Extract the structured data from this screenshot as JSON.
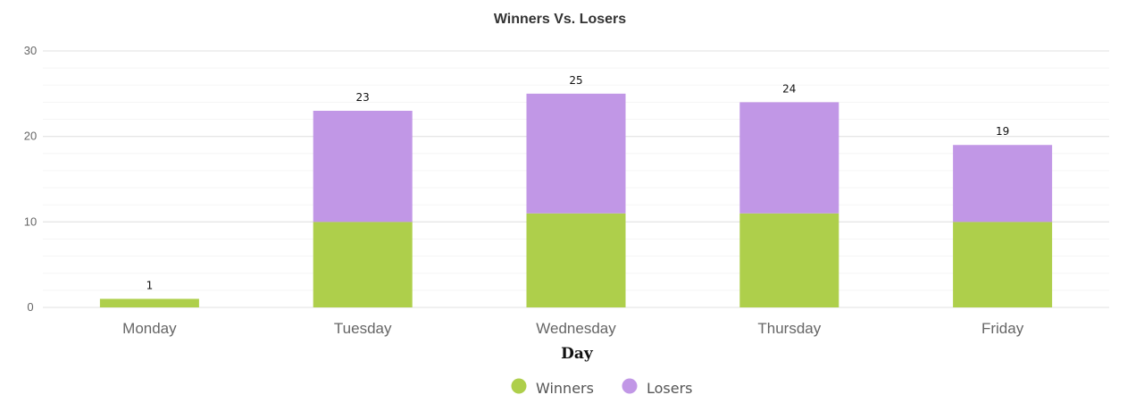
{
  "chart_data": {
    "type": "bar",
    "stacked": true,
    "title": "Winners Vs. Losers",
    "xlabel": "Day",
    "ylabel": "",
    "categories": [
      "Monday",
      "Tuesday",
      "Wednesday",
      "Thursday",
      "Friday"
    ],
    "series": [
      {
        "name": "Winners",
        "values": [
          1,
          10,
          11,
          11,
          10
        ],
        "color": "#aecf4b"
      },
      {
        "name": "Losers",
        "values": [
          0,
          13,
          14,
          13,
          9
        ],
        "color": "#c197e6"
      }
    ],
    "totals": [
      "1",
      "23",
      "25",
      "24",
      "19"
    ],
    "ylim": [
      0,
      30
    ],
    "yticks": [
      "0",
      "10",
      "20",
      "30"
    ],
    "grid": true,
    "legend_position": "bottom"
  }
}
